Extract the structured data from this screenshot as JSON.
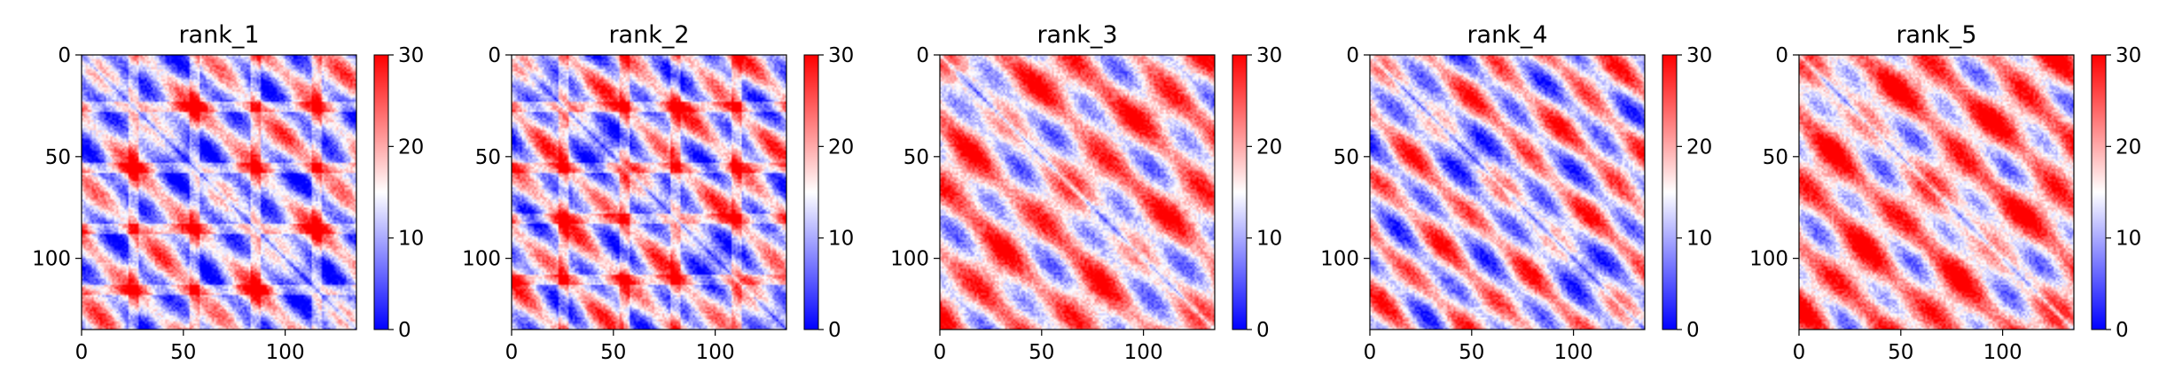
{
  "chart_data": [
    {
      "type": "heatmap",
      "title": "rank_1",
      "matrix_size": 135,
      "xlim": [
        0,
        135
      ],
      "ylim": [
        135,
        0
      ],
      "xticks": [
        0,
        50,
        100
      ],
      "yticks": [
        0,
        50,
        100
      ],
      "colorbar": {
        "range": [
          0,
          30
        ],
        "ticks": [
          0,
          10,
          20,
          30
        ]
      },
      "colormap": {
        "low": "#0000ff",
        "mid": "#ffffff",
        "high": "#ff0000"
      },
      "pattern": {
        "base": 13,
        "amp": 9,
        "period": 30,
        "phase": 0,
        "red_lines": [
          25,
          55,
          85,
          115
        ]
      }
    },
    {
      "type": "heatmap",
      "title": "rank_2",
      "matrix_size": 135,
      "xlim": [
        0,
        135
      ],
      "ylim": [
        135,
        0
      ],
      "xticks": [
        0,
        50,
        100
      ],
      "yticks": [
        0,
        50,
        100
      ],
      "colorbar": {
        "range": [
          0,
          30
        ],
        "ticks": [
          0,
          10,
          20,
          30
        ]
      },
      "colormap": {
        "low": "#0000ff",
        "mid": "#ffffff",
        "high": "#ff0000"
      },
      "pattern": {
        "base": 14,
        "amp": 9,
        "period": 28,
        "phase": 4,
        "red_lines": [
          25,
          55,
          80,
          110
        ]
      }
    },
    {
      "type": "heatmap",
      "title": "rank_3",
      "matrix_size": 135,
      "xlim": [
        0,
        135
      ],
      "ylim": [
        135,
        0
      ],
      "xticks": [
        0,
        50,
        100
      ],
      "yticks": [
        0,
        50,
        100
      ],
      "colorbar": {
        "range": [
          0,
          30
        ],
        "ticks": [
          0,
          10,
          20,
          30
        ]
      },
      "colormap": {
        "low": "#0000ff",
        "mid": "#ffffff",
        "high": "#ff0000"
      },
      "pattern": {
        "base": 19,
        "amp": 8,
        "period": 32,
        "phase": 8,
        "red_lines": []
      }
    },
    {
      "type": "heatmap",
      "title": "rank_4",
      "matrix_size": 135,
      "xlim": [
        0,
        135
      ],
      "ylim": [
        135,
        0
      ],
      "xticks": [
        0,
        50,
        100
      ],
      "yticks": [
        0,
        50,
        100
      ],
      "colorbar": {
        "range": [
          0,
          30
        ],
        "ticks": [
          0,
          10,
          20,
          30
        ]
      },
      "colormap": {
        "low": "#0000ff",
        "mid": "#ffffff",
        "high": "#ff0000"
      },
      "pattern": {
        "base": 16,
        "amp": 9,
        "period": 29,
        "phase": 2,
        "red_lines": []
      }
    },
    {
      "type": "heatmap",
      "title": "rank_5",
      "matrix_size": 135,
      "xlim": [
        0,
        135
      ],
      "ylim": [
        135,
        0
      ],
      "xticks": [
        0,
        50,
        100
      ],
      "yticks": [
        0,
        50,
        100
      ],
      "colorbar": {
        "range": [
          0,
          30
        ],
        "ticks": [
          0,
          10,
          20,
          30
        ]
      },
      "colormap": {
        "low": "#0000ff",
        "mid": "#ffffff",
        "high": "#ff0000"
      },
      "pattern": {
        "base": 20,
        "amp": 8,
        "period": 31,
        "phase": 6,
        "red_lines": []
      }
    }
  ]
}
